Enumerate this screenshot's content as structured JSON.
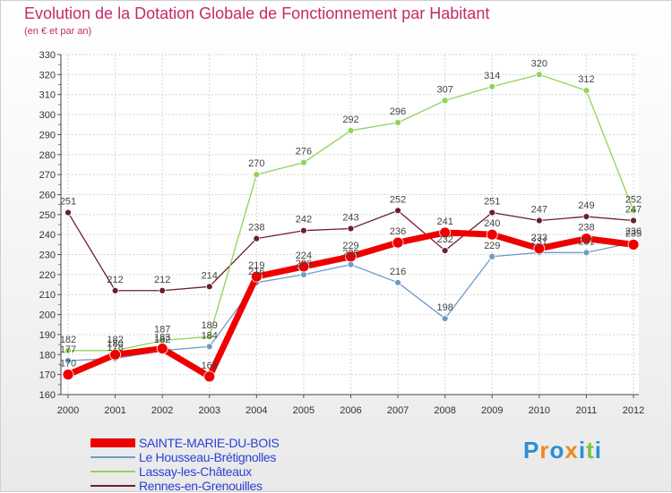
{
  "chart_data": {
    "type": "line",
    "title": "Evolution de la Dotation Globale de Fonctionnement par Habitant",
    "subtitle": "(en € et par an)",
    "xlabel": "",
    "ylabel": "",
    "categories": [
      "2000",
      "2001",
      "2002",
      "2003",
      "2004",
      "2005",
      "2006",
      "2007",
      "2008",
      "2009",
      "2010",
      "2011",
      "2012"
    ],
    "ylim": [
      160,
      330
    ],
    "yticks": [
      160,
      170,
      180,
      190,
      200,
      210,
      220,
      230,
      240,
      250,
      260,
      270,
      280,
      290,
      300,
      310,
      320,
      330
    ],
    "grid": true,
    "legend_position": "bottom-left",
    "series": [
      {
        "name": "Rennes-en-Grenouilles",
        "color": "#6b1f2b",
        "values": [
          251,
          212,
          212,
          214,
          238,
          242,
          243,
          252,
          232,
          251,
          247,
          249,
          247
        ]
      },
      {
        "name": "Lassay-les-Châteaux",
        "color": "#8fd45a",
        "values": [
          182,
          182,
          187,
          189,
          270,
          276,
          292,
          296,
          307,
          314,
          320,
          312,
          252
        ]
      },
      {
        "name": "Le Housseau-Brétignolles",
        "color": "#6e9cc7",
        "values": [
          177,
          178,
          182,
          184,
          216,
          220,
          225,
          216,
          198,
          229,
          231,
          231,
          236
        ]
      },
      {
        "name": "SAINTE-MARIE-DU-BOIS",
        "color": "#ee0000",
        "values": [
          170,
          180,
          183,
          169,
          219,
          224,
          229,
          236,
          241,
          240,
          233,
          238,
          235
        ]
      }
    ],
    "data_labels": [
      {
        "series": "Rennes-en-Grenouilles",
        "values": [
          "251",
          "212",
          "212",
          "214",
          "238",
          "242",
          "243",
          "252",
          "232",
          "251",
          "247",
          "249",
          "247"
        ]
      },
      {
        "series": "Lassay-les-Châteaux",
        "values": [
          "182",
          "182",
          "187",
          "189",
          "270",
          "276",
          "292",
          "296",
          "307",
          "314",
          "320",
          "312",
          "252"
        ]
      },
      {
        "series": "Le Housseau-Brétignolles",
        "values": [
          "177",
          "178",
          "182",
          "184",
          "216",
          "220",
          "225",
          "216",
          "198",
          "229",
          "231",
          "231",
          "236"
        ]
      },
      {
        "series": "SAINTE-MARIE-DU-BOIS",
        "values": [
          "170",
          "180",
          "183",
          "169",
          "219",
          "224",
          "229",
          "236",
          "241",
          "240",
          "233",
          "238",
          "235"
        ]
      }
    ]
  },
  "legend": [
    {
      "label": "SAINTE-MARIE-DU-BOIS",
      "color": "#ee0000"
    },
    {
      "label": "Le Housseau-Brétignolles",
      "color": "#6e9cc7"
    },
    {
      "label": "Lassay-les-Châteaux",
      "color": "#8fd45a"
    },
    {
      "label": "Rennes-en-Grenouilles",
      "color": "#6b1f2b"
    }
  ],
  "logo": {
    "text": "Proxiti",
    "letters": [
      "P",
      "r",
      "o",
      "x",
      "i",
      "t",
      "i"
    ],
    "colors": [
      "#2a8fd8",
      "#ef8a1b",
      "#2a8fd8",
      "#ef8a1b",
      "#2a8fd8",
      "#7cc242",
      "#2a8fd8"
    ]
  }
}
